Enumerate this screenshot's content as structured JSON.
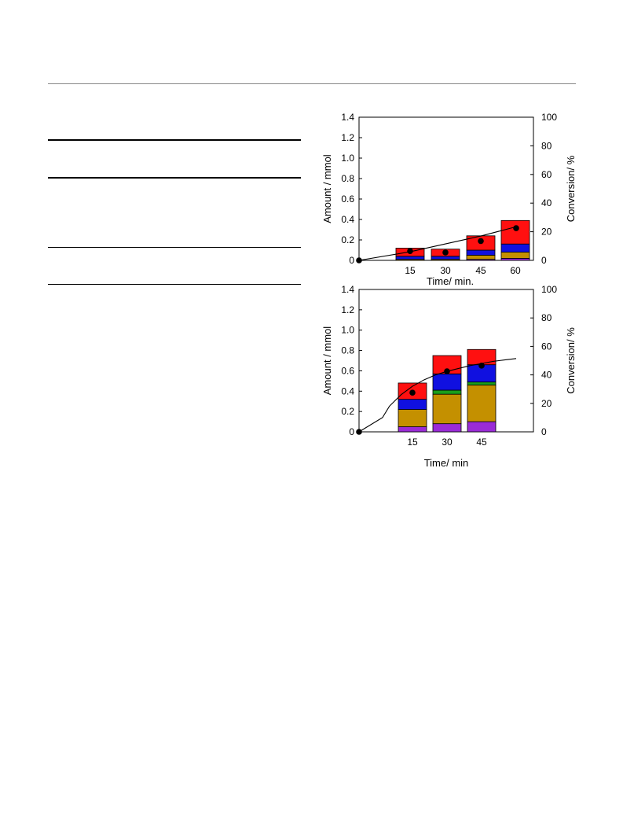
{
  "chart_data": [
    {
      "type": "bar",
      "stacked": true,
      "categories": [
        "15",
        "30",
        "45",
        "60"
      ],
      "xlabel": "Time/ min.",
      "ylabel": "Amount / mmol",
      "y2label": "Conversion/ %",
      "ylim": [
        0,
        1.4
      ],
      "yticks": [
        "0",
        "0.2",
        "0.4",
        "0.6",
        "0.8",
        "1.0",
        "1.2",
        "1.4"
      ],
      "y2lim": [
        0,
        100
      ],
      "y2ticks": [
        "0",
        "20",
        "40",
        "60",
        "80",
        "100"
      ],
      "grid": false,
      "series": [
        {
          "color": "#9a2bd6",
          "values": [
            0.0,
            0.0,
            0.01,
            0.02
          ]
        },
        {
          "color": "#c49000",
          "values": [
            0.01,
            0.01,
            0.04,
            0.06
          ]
        },
        {
          "color": "#1a9e1a",
          "values": [
            0.0,
            0.0,
            0.0,
            0.0
          ]
        },
        {
          "color": "#1010e0",
          "values": [
            0.03,
            0.03,
            0.05,
            0.08
          ]
        },
        {
          "color": "#ff1010",
          "values": [
            0.08,
            0.07,
            0.14,
            0.23
          ]
        }
      ],
      "conversion_points": {
        "x": [
          "0",
          "15",
          "30",
          "45",
          "60"
        ],
        "values": [
          0,
          6.5,
          5.5,
          13.5,
          22.5
        ]
      },
      "conversion_curve": {
        "x": [
          0,
          15,
          30,
          45,
          60
        ],
        "values": [
          0,
          6,
          11.5,
          17,
          23.5
        ]
      }
    },
    {
      "type": "bar",
      "stacked": true,
      "categories": [
        "15",
        "30",
        "45"
      ],
      "xlabel": "Time/ min",
      "ylabel": "Amount / mmol",
      "y2label": "Conversion/ %",
      "ylim": [
        0,
        1.4
      ],
      "yticks": [
        "0",
        "0.2",
        "0.4",
        "0.6",
        "0.8",
        "1.0",
        "1.2",
        "1.4"
      ],
      "y2lim": [
        0,
        100
      ],
      "y2ticks": [
        "0",
        "20",
        "40",
        "60",
        "80",
        "100"
      ],
      "grid": false,
      "series": [
        {
          "color": "#9a2bd6",
          "values": [
            0.05,
            0.08,
            0.1
          ]
        },
        {
          "color": "#c49000",
          "values": [
            0.17,
            0.29,
            0.36
          ]
        },
        {
          "color": "#1a9e1a",
          "values": [
            0.0,
            0.04,
            0.03
          ]
        },
        {
          "color": "#1010e0",
          "values": [
            0.1,
            0.16,
            0.17
          ]
        },
        {
          "color": "#ff1010",
          "values": [
            0.16,
            0.18,
            0.15
          ]
        }
      ],
      "conversion_points": {
        "x": [
          "0",
          "15",
          "30",
          "45"
        ],
        "values": [
          0,
          27.5,
          42.5,
          46.5
        ]
      },
      "conversion_curve": {
        "x": [
          0,
          2,
          5,
          10,
          15,
          20,
          25,
          30,
          35,
          40,
          45,
          50,
          55,
          60
        ],
        "values": [
          0,
          10,
          18,
          26,
          32,
          36.5,
          40,
          42.5,
          44.5,
          46.5,
          48,
          49.5,
          50.5,
          51.5
        ]
      }
    }
  ]
}
